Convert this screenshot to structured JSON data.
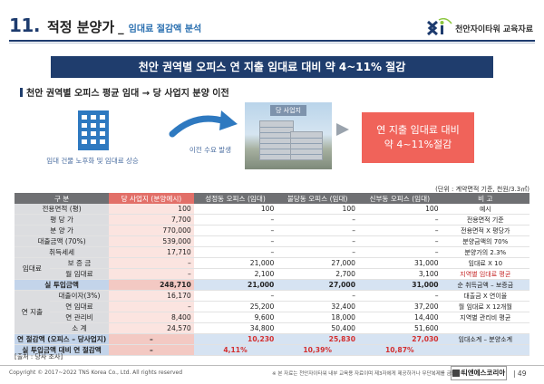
{
  "header": {
    "section_number": "11.",
    "section_title": "적정 분양가",
    "separator": "_",
    "section_subtitle": "임대료 절감액 분석",
    "logo_text": "천안자이타워 교육자료"
  },
  "banner": {
    "text": "천안 권역별 오피스 연 지출 임대료 대비 약 4~11% 절감"
  },
  "subhead": {
    "text": "천안 권역별 오피스 평균 임대 → 당 사업지 분양 이전"
  },
  "graphics": {
    "building_caption": "임대 건물 노후화 및 임대료 상승",
    "arrow_caption": "이전 수요 발생",
    "photo_label": "당 사업지",
    "result_line1": "연 지출 임대료 대비",
    "result_line2": "약 4~11%절감"
  },
  "table": {
    "unit_note": "(단위 : 계약면적 기준, 천원/3.3㎡)",
    "headers": [
      "구 분",
      "당 사업지 (분양예시)",
      "성정동 오피스 (임대)",
      "불당동 오피스 (임대)",
      "신부동 오피스 (임대)",
      "비 고"
    ],
    "rows": [
      {
        "label": "전용면적 (평)",
        "v1": "100",
        "v2": "100",
        "v3": "100",
        "v4": "100",
        "note": "예시"
      },
      {
        "label": "평 당 가",
        "v1": "7,700",
        "v2": "–",
        "v3": "–",
        "v4": "–",
        "note": "전용면적 기준"
      },
      {
        "label": "분 양 가",
        "v1": "770,000",
        "v2": "–",
        "v3": "–",
        "v4": "–",
        "note": "전용면적 X 평당가"
      },
      {
        "label": "대출금액 (70%)",
        "v1": "539,000",
        "v2": "–",
        "v3": "–",
        "v4": "–",
        "note": "분양금액의 70%"
      },
      {
        "label": "취득세세",
        "v1": "17,710",
        "v2": "–",
        "v3": "–",
        "v4": "–",
        "note": "분양가의 2.3%"
      }
    ],
    "lease_group": "임대료",
    "lease_rows": [
      {
        "label": "보 증 금",
        "v1": "–",
        "v2": "21,000",
        "v3": "27,000",
        "v4": "31,000",
        "note": "임대료 X 10"
      },
      {
        "label": "월 임대료",
        "v1": "–",
        "v2": "2,100",
        "v3": "2,700",
        "v4": "3,100",
        "note": "지역별 임대료 평균"
      }
    ],
    "invest_row": {
      "label": "실 투입금액",
      "v1": "248,710",
      "v2": "21,000",
      "v3": "27,000",
      "v4": "31,000",
      "note": "순 취득금액 – 보증금"
    },
    "expense_group": "연 지출",
    "expense_rows": [
      {
        "label": "대출이자(3%)",
        "v1": "16,170",
        "v2": "–",
        "v3": "–",
        "v4": "–",
        "note": "대출금 X 연이율"
      },
      {
        "label": "연 임대료",
        "v1": "–",
        "v2": "25,200",
        "v3": "32,400",
        "v4": "37,200",
        "note": "월 임대료 X 12개월"
      },
      {
        "label": "연 관리비",
        "v1": "8,400",
        "v2": "9,600",
        "v3": "18,000",
        "v4": "14,400",
        "note": "지역별 관리비 평균"
      },
      {
        "label": "소 계",
        "v1": "24,570",
        "v2": "34,800",
        "v3": "50,400",
        "v4": "51,600",
        "note": ""
      }
    ],
    "saving_row": {
      "label": "연 절감액 (오피스 – 당사업지)",
      "v1": "–",
      "v2": "10,230",
      "v3": "25,830",
      "v4": "27,030",
      "note": "임대소계 – 분양소계"
    },
    "ratio_row": {
      "label": "실 투입금액 대비 연 절감액",
      "v1": "–",
      "v2": "4,11%",
      "v3": "10,39%",
      "v4": "10,87%",
      "note": ""
    }
  },
  "source": "[출처 : 당사 조사]",
  "footer": {
    "copyright": "Copyright © 2017~2022 TNS Korea Co., Ltd.  All rights reserved",
    "disclaimer": "※ 본 자료는 천안자이타워 내부 교육용 자료이며 제3자에게 제공하거나 무단복제를 금합니다.",
    "brand": "티엔에스코리아",
    "page": "49"
  },
  "colors": {
    "navy": "#1f3d6d",
    "accent_red": "#f0635a",
    "highlight": "#fbe4e0"
  }
}
